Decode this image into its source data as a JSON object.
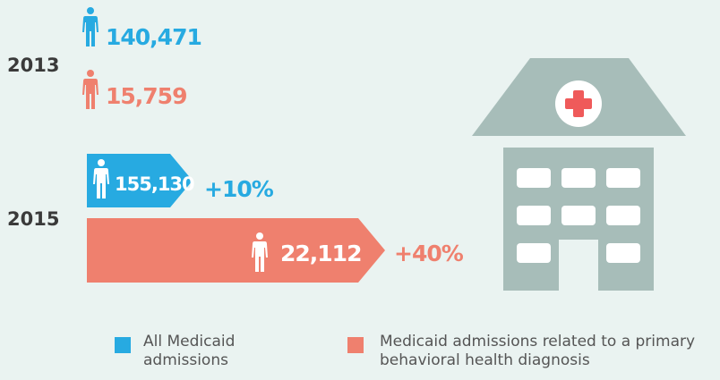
{
  "rows": [
    {
      "year": "2013",
      "all": "140,471",
      "behavioral": "15,759"
    },
    {
      "year": "2015",
      "all": "155,130",
      "all_change": "+10%",
      "behavioral": "22,112",
      "behavioral_change": "+40%"
    }
  ],
  "legend": [
    {
      "label": "All Medicaid admissions",
      "color": "#27aae1"
    },
    {
      "label": "Medicaid admissions related to a primary behavioral health diagnosis",
      "color": "#ef806e"
    }
  ]
}
